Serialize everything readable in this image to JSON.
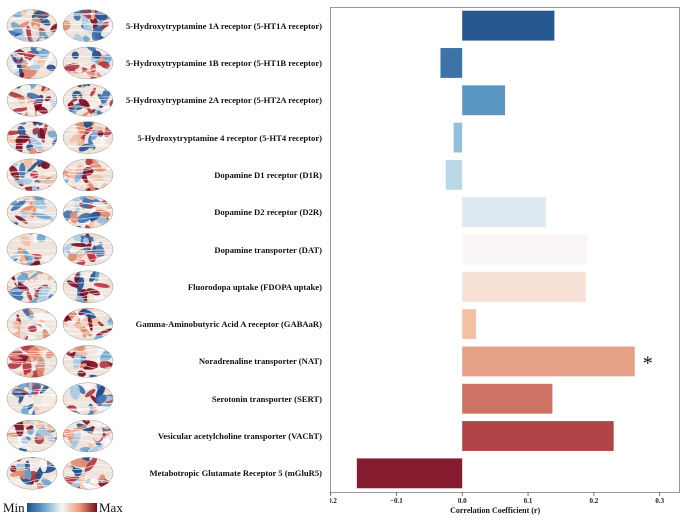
{
  "chart_data": {
    "type": "bar",
    "orientation": "horizontal",
    "xlabel": "Correlation Coefficient (r)",
    "xlim": [
      -0.2,
      0.33
    ],
    "xticks": [
      "−0.2",
      "−0.1",
      "0.0",
      "0.1",
      "0.2",
      "0.3"
    ],
    "xtick_values": [
      -0.2,
      -0.1,
      0.0,
      0.1,
      0.2,
      0.3
    ],
    "categories": [
      "5-Hydroxytryptamine 1A receptor (5-HT1A receptor)",
      "5-Hydroxytryptamine 1B receptor (5-HT1B receptor)",
      "5-Hydroxytryptamine 2A receptor (5-HT2A receptor)",
      "5-Hydroxytryptamine 4 receptor (5-HT4 receptor)",
      "Dopamine D1 receptor (D1R)",
      "Dopamine D2 receptor (D2R)",
      "Dopamine transporter (DAT)",
      "Fluorodopa uptake (FDOPA uptake)",
      "Gamma-Aminobutyric Acid A receptor (GABAaR)",
      "Noradrenaline transporter (NAT)",
      "Serotonin transporter (SERT)",
      "Vesicular acetylcholine transporter (VAChT)",
      "Metabotropic Glutamate Receptor 5 (mGluR5)"
    ],
    "values": [
      0.14,
      -0.033,
      0.065,
      -0.013,
      -0.025,
      0.127,
      0.19,
      0.188,
      0.021,
      0.262,
      0.137,
      0.23,
      -0.16
    ],
    "bar_colors": [
      "#26588f",
      "#3e73a8",
      "#5b95c2",
      "#94bfd9",
      "#bcd8e6",
      "#dde8f1",
      "#f9f6f5",
      "#f8e1d6",
      "#f3c0a5",
      "#e5a188",
      "#cd7264",
      "#b14448",
      "#861c2f"
    ],
    "significance": [
      "",
      "",
      "",
      "",
      "",
      "",
      "",
      "",
      "",
      "*",
      "",
      "",
      ""
    ],
    "grid": false
  },
  "colorbar": {
    "min_label": "Min",
    "max_label": "Max"
  }
}
